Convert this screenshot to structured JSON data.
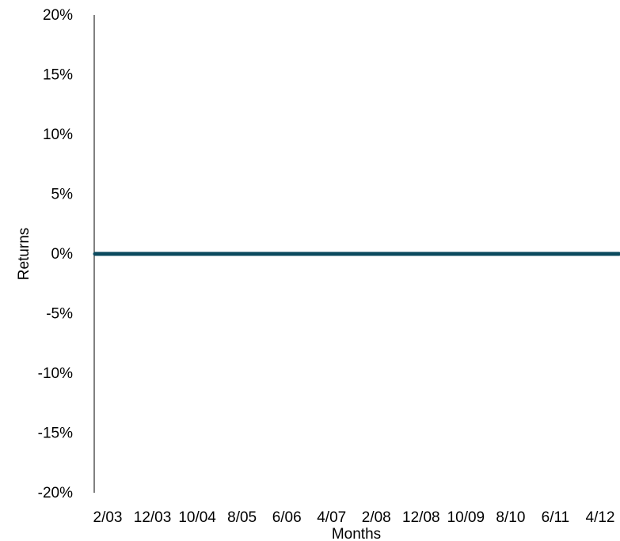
{
  "chart_data": {
    "type": "line",
    "title": "",
    "xlabel": "Months",
    "ylabel": "Returns",
    "ylim": [
      -20,
      20
    ],
    "y_ticks": [
      "20%",
      "15%",
      "10%",
      "5%",
      "0%",
      "-5%",
      "-10%",
      "-15%",
      "-20%"
    ],
    "y_tick_values": [
      20,
      15,
      10,
      5,
      0,
      -5,
      -10,
      -15,
      -20
    ],
    "x_ticks": [
      "2/03",
      "12/03",
      "10/04",
      "8/05",
      "6/06",
      "4/07",
      "2/08",
      "12/08",
      "10/09",
      "8/10",
      "6/11",
      "4/12"
    ],
    "grid": false,
    "series": [
      {
        "color": "#0b4a5e",
        "x": [
          "2/03",
          "12/03",
          "10/04",
          "8/05",
          "6/06",
          "4/07",
          "2/08",
          "12/08",
          "10/09",
          "8/10",
          "6/11",
          "4/12"
        ],
        "values": [
          0,
          0,
          0,
          0,
          0,
          0,
          0,
          0,
          0,
          0,
          0,
          0
        ]
      }
    ]
  }
}
